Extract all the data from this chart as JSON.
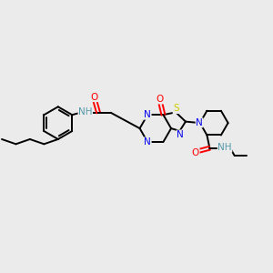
{
  "bg_color": "#ebebeb",
  "atom_colors": {
    "C": "#000000",
    "N": "#0000ee",
    "O": "#ff0000",
    "S": "#cccc00",
    "H": "#5599aa"
  },
  "bond_color": "#000000",
  "bond_width": 1.4,
  "fig_width": 3.0,
  "fig_height": 3.0,
  "dpi": 100,
  "xlim": [
    0,
    10
  ],
  "ylim": [
    0,
    10
  ],
  "font_size": 7.5
}
